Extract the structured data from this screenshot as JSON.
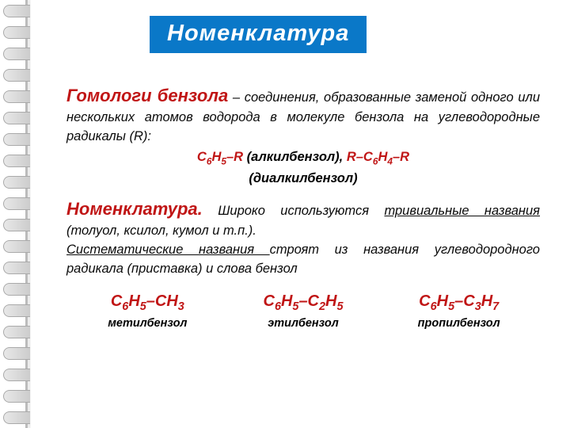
{
  "title": "Номенклатура",
  "p1": {
    "term": "Гомологи бензола",
    "rest": " – соединения, образованные заменой одного или нескольких атомов водорода в молекуле бензола на углеводородные радикалы (R):"
  },
  "formulas": {
    "f1_a": "C",
    "f1_b": "6",
    "f1_c": "Н",
    "f1_d": "5",
    "f1_e": "–R",
    "f1_label": "  (алкилбензол),   ",
    "f2_a": "R–С",
    "f2_b": "6",
    "f2_c": "Н",
    "f2_d": "4",
    "f2_e": "–R",
    "f2_label": "(диалкилбензол)"
  },
  "p2": {
    "term": "Номенклатура.",
    "t1": " Широко используются ",
    "u1": "тривиальные названия ",
    "t2": "(толуол, ксилол, кумол и т.п.).",
    "u2": "Систематические названия ",
    "t3": "строят из названия углеводородного радикала (приставка) и слова бензол"
  },
  "examples": [
    {
      "prefix": "С",
      "s1": "6",
      "mid1": "Н",
      "s2": "5",
      "mid2": "–СН",
      "s3": "3",
      "suffix": "",
      "label": "метилбензол"
    },
    {
      "prefix": "С",
      "s1": "6",
      "mid1": "Н",
      "s2": "5",
      "mid2": "–С",
      "s3": "2",
      "suffix_mid": "Н",
      "s4": "5",
      "label": "этилбензол"
    },
    {
      "prefix": "С",
      "s1": "6",
      "mid1": "Н",
      "s2": "5",
      "mid2": "–С",
      "s3": "3",
      "suffix_mid": "Н",
      "s4": "7",
      "label": "пропилбензол"
    }
  ],
  "colors": {
    "title_bg": "#0a78c8",
    "red": "#c01515"
  }
}
